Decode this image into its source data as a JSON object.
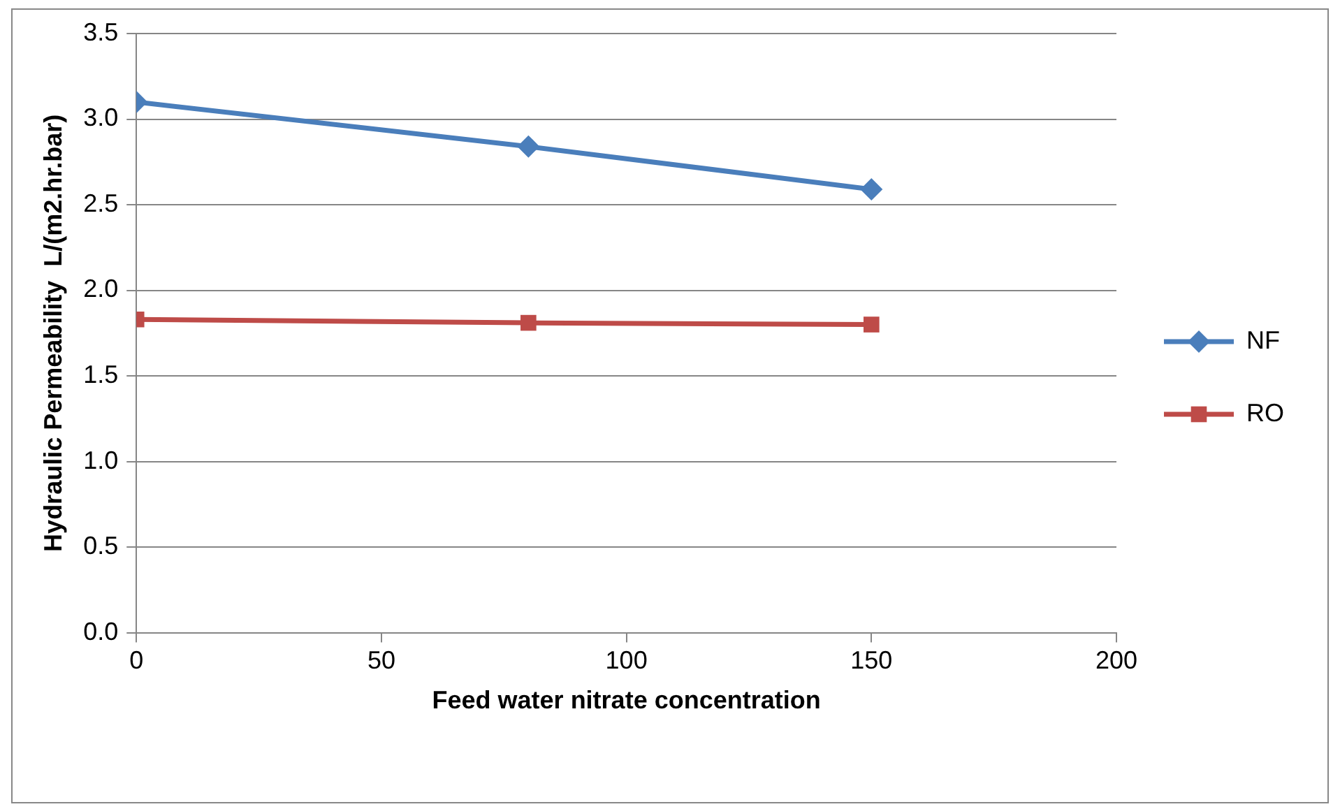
{
  "chart_data": {
    "type": "line",
    "xlabel": "Feed water nitrate concentration",
    "ylabel": "Hydraulic Permeability  L/(m2.hr.bar)",
    "x": [
      0,
      80,
      150
    ],
    "series": [
      {
        "name": "NF",
        "color": "#4a7ebb",
        "values": [
          3.1,
          2.84,
          2.59
        ],
        "marker": "diamond"
      },
      {
        "name": "RO",
        "color": "#be4b48",
        "values": [
          1.83,
          1.81,
          1.8
        ],
        "marker": "square"
      }
    ],
    "xlim": [
      0,
      200
    ],
    "xticks": [
      0,
      50,
      100,
      150,
      200
    ],
    "ylim": [
      0,
      3.5
    ],
    "yticks": [
      {
        "value": 0,
        "label": "0.0"
      },
      {
        "value": 0.5,
        "label": "0.5"
      },
      {
        "value": 1,
        "label": "1.0"
      },
      {
        "value": 1.5,
        "label": "1.5"
      },
      {
        "value": 2,
        "label": "2.0"
      },
      {
        "value": 2.5,
        "label": "2.5"
      },
      {
        "value": 3,
        "label": "3.0"
      },
      {
        "value": 3.5,
        "label": "3.5"
      }
    ],
    "grid": "y",
    "legend": "right",
    "line_style": "solid"
  }
}
